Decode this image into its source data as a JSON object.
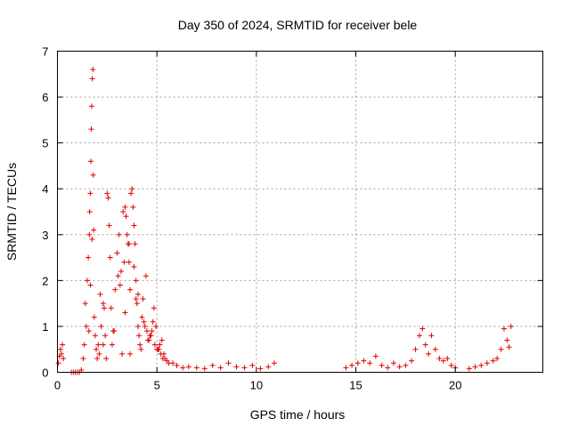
{
  "chart_data": {
    "type": "scatter",
    "title": "Day 350 of 2024, SRMTID for receiver bele",
    "xlabel": "GPS time / hours",
    "ylabel": "SRMTID / TECUs",
    "xlim": [
      0,
      24.4
    ],
    "ylim": [
      0,
      7
    ],
    "xticks": [
      0,
      5,
      10,
      15,
      20
    ],
    "yticks": [
      0,
      1,
      2,
      3,
      4,
      5,
      6,
      7
    ],
    "grid": true,
    "marker": "plus",
    "color": "#e00000",
    "series": [
      {
        "name": "SRMTID",
        "x": [
          0.05,
          0.1,
          0.15,
          0.2,
          0.25,
          0.3,
          0.7,
          0.8,
          0.9,
          1.0,
          1.1,
          1.2,
          1.3,
          1.35,
          1.4,
          1.45,
          1.5,
          1.55,
          1.6,
          1.62,
          1.65,
          1.68,
          1.7,
          1.72,
          1.75,
          1.78,
          1.8,
          1.82,
          1.85,
          1.9,
          1.95,
          2.0,
          2.05,
          2.1,
          2.2,
          2.3,
          2.4,
          2.5,
          2.55,
          2.6,
          2.65,
          2.7,
          2.75,
          2.8,
          2.9,
          3.0,
          3.1,
          3.2,
          3.3,
          3.4,
          3.45,
          3.5,
          3.55,
          3.6,
          3.65,
          3.7,
          3.75,
          3.8,
          3.85,
          3.9,
          3.95,
          4.0,
          4.05,
          4.1,
          4.15,
          4.2,
          4.25,
          4.3,
          4.4,
          4.5,
          4.6,
          4.7,
          4.8,
          4.9,
          5.0,
          5.1,
          5.2,
          5.3,
          5.4,
          5.5,
          5.6,
          5.8,
          6.0,
          6.3,
          6.6,
          7.0,
          7.4,
          7.8,
          8.2,
          8.6,
          9.0,
          9.4,
          9.8,
          10.2,
          10.6,
          10.9,
          14.5,
          14.8,
          15.1,
          15.4,
          15.7,
          16.0,
          16.3,
          16.6,
          16.9,
          17.2,
          17.5,
          17.8,
          18.0,
          18.2,
          18.35,
          18.5,
          18.65,
          18.8,
          19.0,
          19.2,
          19.4,
          19.6,
          19.8,
          20.0,
          20.7,
          21.0,
          21.3,
          21.6,
          21.9,
          22.1,
          22.3,
          22.45,
          22.6,
          22.7,
          22.8,
          2.3,
          2.45,
          3.05,
          3.25,
          3.4,
          3.6,
          3.85,
          4.05,
          4.35,
          4.55,
          4.75,
          4.95,
          5.15,
          5.35,
          1.58,
          1.66,
          1.74,
          2.15,
          2.35,
          2.85,
          3.15,
          3.35,
          3.65,
          3.95,
          4.45,
          4.65,
          4.85,
          5.05,
          5.25
        ],
        "y": [
          0.2,
          0.35,
          0.5,
          0.4,
          0.6,
          0.3,
          0.0,
          0.0,
          0.0,
          0.0,
          0.0,
          0.05,
          0.3,
          0.6,
          1.5,
          1.0,
          2.0,
          2.5,
          3.0,
          3.5,
          3.9,
          4.6,
          5.3,
          5.8,
          6.4,
          6.6,
          4.3,
          3.1,
          1.2,
          0.8,
          0.5,
          0.3,
          0.6,
          0.4,
          1.0,
          1.5,
          0.8,
          3.9,
          3.8,
          3.2,
          2.5,
          1.4,
          0.6,
          0.9,
          1.8,
          2.6,
          3.0,
          2.2,
          3.5,
          3.6,
          3.4,
          3.0,
          2.8,
          2.4,
          1.8,
          3.9,
          4.0,
          3.6,
          3.2,
          2.8,
          2.0,
          1.5,
          1.0,
          0.8,
          0.6,
          0.5,
          1.2,
          1.6,
          1.0,
          0.9,
          0.7,
          0.8,
          1.1,
          0.6,
          0.5,
          0.5,
          0.4,
          0.3,
          0.3,
          0.25,
          0.2,
          0.2,
          0.15,
          0.1,
          0.12,
          0.1,
          0.08,
          0.15,
          0.1,
          0.2,
          0.12,
          0.1,
          0.15,
          0.08,
          0.12,
          0.2,
          0.1,
          0.15,
          0.2,
          0.25,
          0.2,
          0.35,
          0.15,
          0.1,
          0.2,
          0.12,
          0.15,
          0.25,
          0.5,
          0.8,
          0.95,
          0.6,
          0.4,
          0.8,
          0.5,
          0.3,
          0.25,
          0.3,
          0.15,
          0.1,
          0.08,
          0.12,
          0.15,
          0.2,
          0.25,
          0.3,
          0.5,
          0.95,
          0.7,
          0.55,
          1.0,
          0.6,
          0.3,
          2.1,
          0.4,
          1.3,
          2.8,
          2.3,
          1.7,
          1.1,
          0.7,
          0.9,
          1.0,
          0.6,
          0.4,
          0.9,
          1.9,
          2.9,
          1.7,
          1.4,
          0.9,
          1.9,
          2.4,
          0.4,
          1.6,
          2.1,
          0.8,
          1.4,
          0.5,
          0.7
        ]
      }
    ]
  }
}
